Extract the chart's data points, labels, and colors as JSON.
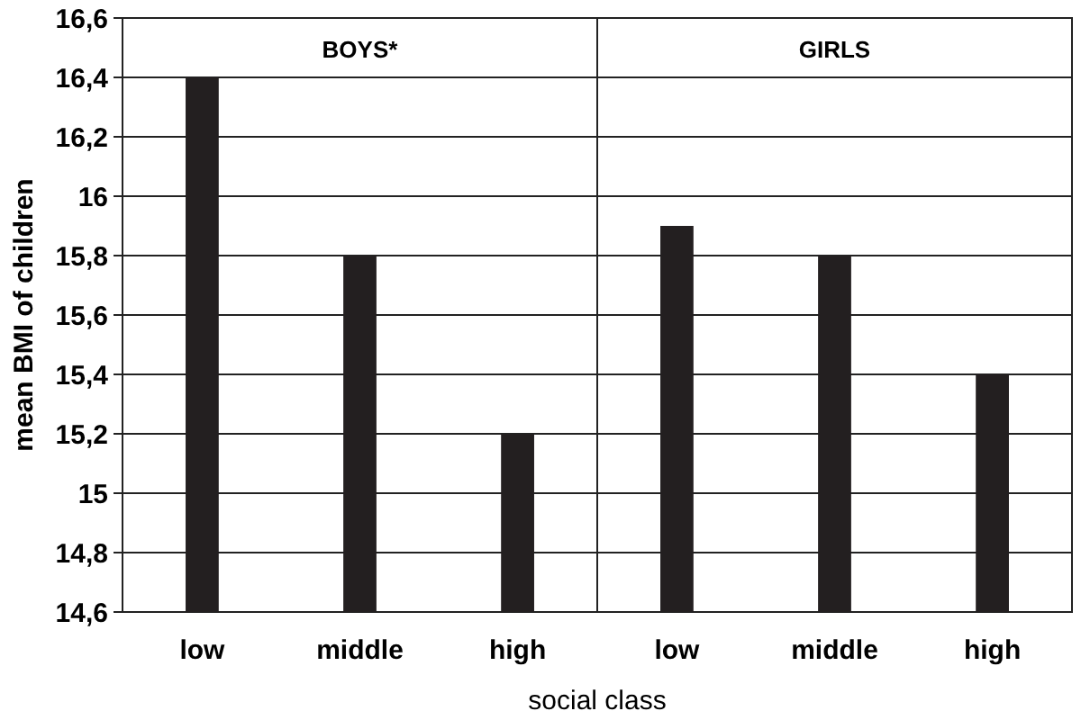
{
  "chart_data": [
    {
      "type": "bar",
      "title": "BOYS*",
      "ylabel": "mean BMI of children",
      "xlabel": "social class",
      "categories": [
        "low",
        "middle",
        "high"
      ],
      "values": [
        16.4,
        15.8,
        15.2
      ],
      "color": "#231f20",
      "ylim": [
        14.6,
        16.6
      ],
      "yticks": [
        {
          "value": 14.6,
          "label": "14,6"
        },
        {
          "value": 14.8,
          "label": "14,8"
        },
        {
          "value": 15,
          "label": "15"
        },
        {
          "value": 15.2,
          "label": "15,2"
        },
        {
          "value": 15.4,
          "label": "15,4"
        },
        {
          "value": 15.6,
          "label": "15,6"
        },
        {
          "value": 15.8,
          "label": "15,8"
        },
        {
          "value": 16,
          "label": "16"
        },
        {
          "value": 16.2,
          "label": "16,2"
        },
        {
          "value": 16.4,
          "label": "16,4"
        },
        {
          "value": 16.6,
          "label": "16,6"
        }
      ],
      "grid": "y"
    },
    {
      "type": "bar",
      "title": "GIRLS",
      "categories": [
        "low",
        "middle",
        "high"
      ],
      "values": [
        15.9,
        15.8,
        15.4
      ],
      "color": "#231f20",
      "ylim": [
        14.6,
        16.6
      ],
      "yticks": [
        {
          "value": 14.6,
          "label": null
        },
        {
          "value": 14.8,
          "label": null
        },
        {
          "value": 15,
          "label": null
        },
        {
          "value": 15.2,
          "label": null
        },
        {
          "value": 15.4,
          "label": null
        },
        {
          "value": 15.6,
          "label": null
        },
        {
          "value": 15.8,
          "label": null
        },
        {
          "value": 16,
          "label": null
        },
        {
          "value": 16.2,
          "label": null
        },
        {
          "value": 16.4,
          "label": null
        },
        {
          "value": 16.6,
          "label": null
        }
      ],
      "grid": "y",
      "tick_labels": "x"
    }
  ]
}
